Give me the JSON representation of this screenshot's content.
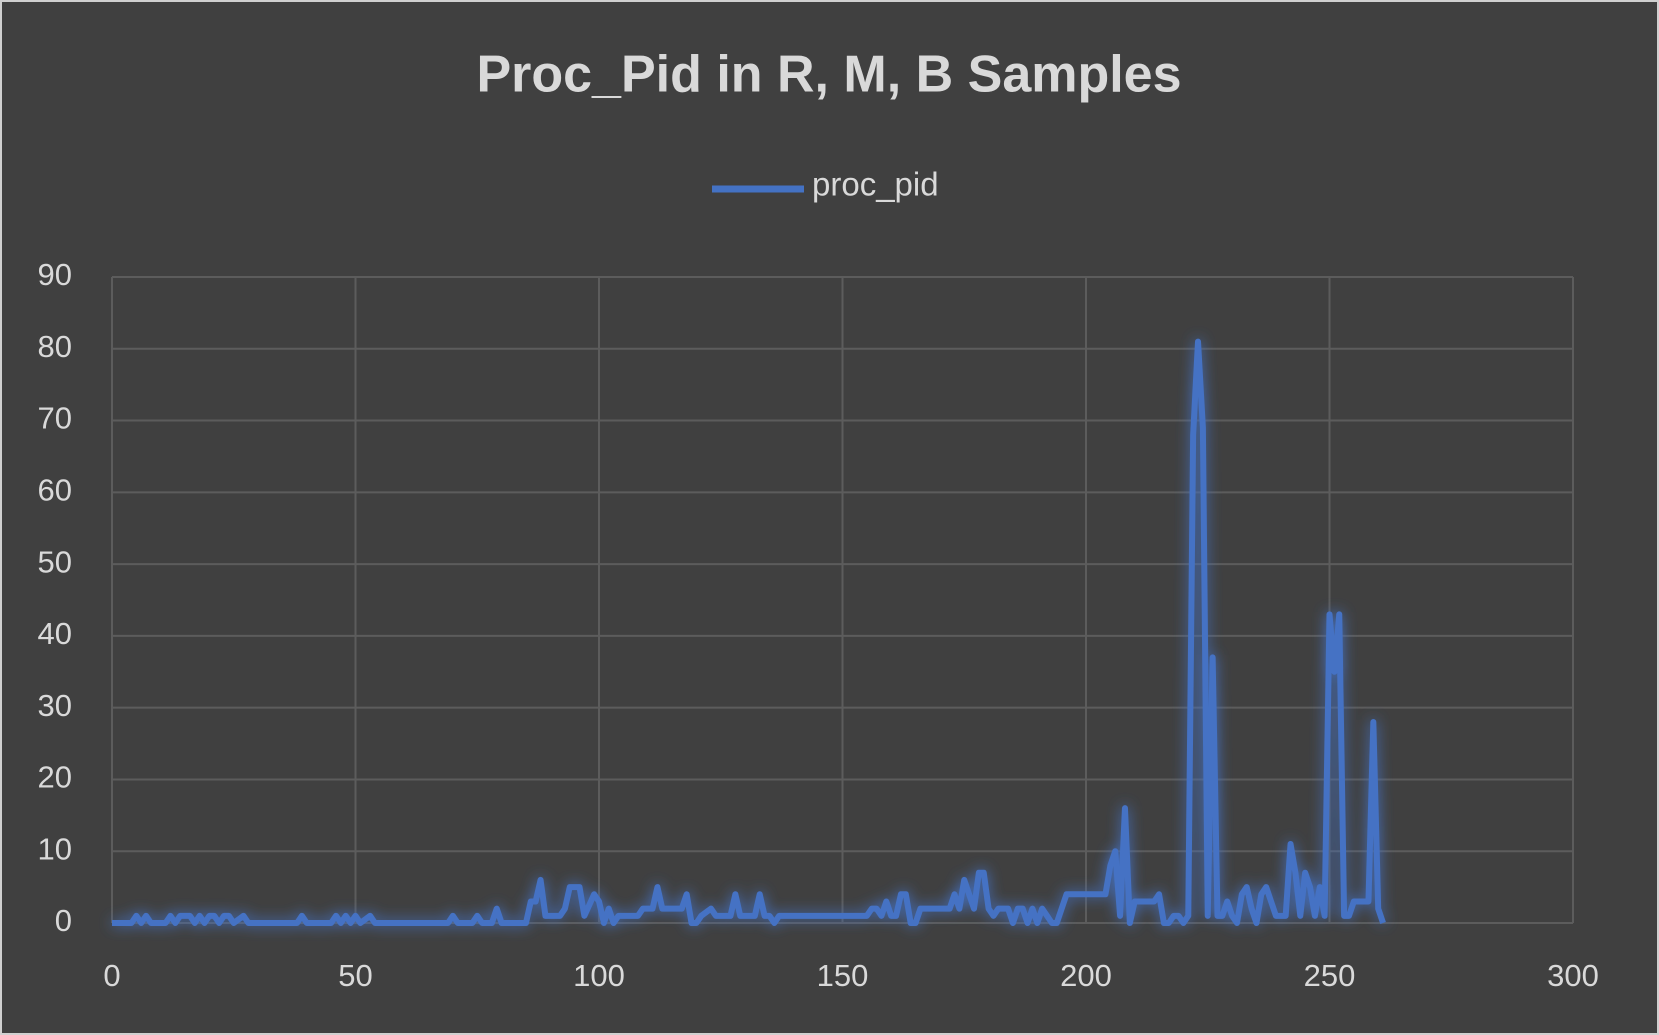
{
  "chart_data": {
    "type": "line",
    "title": "Proc_Pid in R, M, B Samples",
    "x": [
      0,
      4,
      5,
      6,
      7,
      8,
      11,
      12,
      13,
      14,
      16,
      17,
      18,
      19,
      20,
      21,
      22,
      23,
      24,
      25,
      27,
      28,
      38,
      39,
      40,
      45,
      46,
      47,
      48,
      49,
      50,
      51,
      53,
      54,
      69,
      70,
      71,
      74,
      75,
      76,
      78,
      79,
      80,
      85,
      86,
      87,
      88,
      89,
      92,
      93,
      94,
      96,
      97,
      99,
      100,
      101,
      102,
      103,
      104,
      108,
      109,
      111,
      112,
      113,
      117,
      118,
      119,
      120,
      121,
      123,
      124,
      127,
      128,
      129,
      132,
      133,
      134,
      135,
      136,
      137,
      155,
      156,
      157,
      158,
      159,
      160,
      161,
      162,
      163,
      164,
      165,
      166,
      172,
      173,
      174,
      175,
      176,
      177,
      178,
      179,
      180,
      181,
      182,
      184,
      185,
      186,
      187,
      188,
      189,
      190,
      191,
      192,
      193,
      194,
      195,
      196,
      203,
      204,
      205,
      206,
      207,
      208,
      209,
      210,
      214,
      215,
      216,
      217,
      218,
      219,
      220,
      221,
      222,
      223,
      224,
      225,
      226,
      227,
      228,
      229,
      230,
      231,
      232,
      233,
      234,
      235,
      236,
      237,
      238,
      239,
      240,
      241,
      242,
      243,
      244,
      245,
      246,
      247,
      248,
      249,
      250,
      251,
      252,
      253,
      254,
      255,
      258,
      259,
      260,
      261
    ],
    "series": [
      {
        "name": "proc_pid",
        "color": "#4472c4",
        "values": [
          0,
          0,
          1,
          0,
          1,
          0,
          0,
          1,
          0,
          1,
          1,
          0,
          1,
          0,
          1,
          1,
          0,
          1,
          1,
          0,
          1,
          0,
          0,
          1,
          0,
          0,
          1,
          0,
          1,
          0,
          1,
          0,
          1,
          0,
          0,
          1,
          0,
          0,
          1,
          0,
          0,
          2,
          0,
          0,
          3,
          3,
          6,
          1,
          1,
          2,
          5,
          5,
          1,
          4,
          3,
          0,
          2,
          0,
          1,
          1,
          2,
          2,
          5,
          2,
          2,
          4,
          0,
          0,
          1,
          2,
          1,
          1,
          4,
          1,
          1,
          4,
          1,
          1,
          0,
          1,
          1,
          2,
          2,
          1,
          3,
          1,
          1,
          4,
          4,
          0,
          0,
          2,
          2,
          4,
          2,
          6,
          4,
          2,
          7,
          7,
          2,
          1,
          2,
          2,
          0,
          2,
          2,
          0,
          2,
          0,
          2,
          1,
          0,
          0,
          2,
          4,
          4,
          4,
          8,
          10,
          1,
          16,
          0,
          3,
          3,
          4,
          0,
          0,
          1,
          1,
          0,
          1,
          68,
          81,
          69,
          1,
          37,
          1,
          1,
          3,
          1,
          0,
          4,
          5,
          2,
          0,
          4,
          5,
          3,
          1,
          1,
          1,
          11,
          7,
          1,
          7,
          5,
          1,
          5,
          1,
          43,
          35,
          43,
          1,
          1,
          3,
          3,
          28,
          2,
          0
        ]
      }
    ],
    "xlim": [
      0,
      300
    ],
    "xticks": [
      0,
      50,
      100,
      150,
      200,
      250,
      300
    ],
    "ylim": [
      0,
      90
    ],
    "yticks": [
      0,
      10,
      20,
      30,
      40,
      50,
      60,
      70,
      80,
      90
    ],
    "grid": true,
    "legend": "top"
  }
}
